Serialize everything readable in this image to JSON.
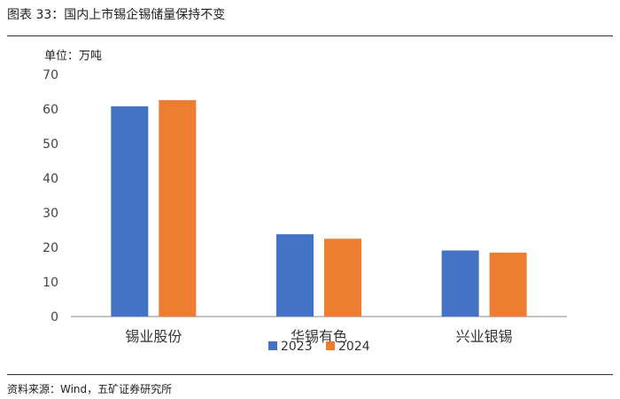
{
  "header": {
    "title": "图表 33：国内上市锡企锡储量保持不变"
  },
  "footer": {
    "source": "资料来源：Wind，五矿证券研究所"
  },
  "colors": {
    "s2023": "#4472C4",
    "s2024": "#ED7D31",
    "axis": "#888888"
  },
  "chart_data": {
    "type": "bar",
    "title": "",
    "unit_label": "单位：万吨",
    "xlabel": "",
    "ylabel": "",
    "ylim": [
      0,
      70
    ],
    "yticks": [
      0,
      10,
      20,
      30,
      40,
      50,
      60,
      70
    ],
    "grid": false,
    "legend_position": "bottom",
    "categories": [
      "锡业股份",
      "华锡有色",
      "兴业银锡"
    ],
    "series": [
      {
        "name": "2023",
        "values": [
          60.8,
          23.8,
          19.1
        ]
      },
      {
        "name": "2024",
        "values": [
          62.6,
          22.5,
          18.5
        ]
      }
    ]
  }
}
